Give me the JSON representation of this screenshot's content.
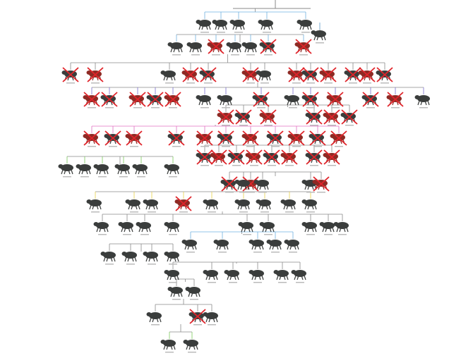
{
  "diagram": {
    "type": "phylogenetic-tree",
    "colors": {
      "branch_default": "#8a8a8a",
      "branch_blue": "#6fb0e0",
      "branch_green": "#7cc95a",
      "branch_yellow": "#e8d24a",
      "branch_purple": "#7a6fd0",
      "branch_pink": "#e070c0",
      "extinct_mark": "#e0242a",
      "creature_dark": "#3a3d3c",
      "creature_red": "#8e2a24"
    },
    "node_status": [
      "extant",
      "extant",
      "extant",
      "extant",
      "extant",
      "extant",
      "extant",
      "extant",
      "extinct",
      "extant",
      "extant",
      "extinct",
      "extinct",
      "extinct",
      "extinct",
      "extant",
      "extinct",
      "extinct",
      "extinct",
      "extant",
      "extinct",
      "extinct",
      "extinct",
      "extinct",
      "extinct",
      "extinct",
      "extinct",
      "extinct",
      "extinct",
      "extinct",
      "extinct",
      "extant",
      "extant",
      "extinct",
      "extant",
      "extinct",
      "extinct",
      "extinct",
      "extinct",
      "extant",
      "extinct",
      "extinct",
      "extinct",
      "extinct",
      "extinct",
      "extinct",
      "extinct",
      "extinct",
      "extinct",
      "extinct",
      "extinct",
      "extinct",
      "extinct",
      "extinct",
      "extinct",
      "extinct",
      "extinct",
      "extinct",
      "extinct",
      "extinct",
      "extinct",
      "extinct",
      "extinct",
      "extinct",
      "extinct",
      "extant",
      "extant",
      "extant",
      "extant",
      "extant",
      "extant",
      "extinct",
      "extinct",
      "extant",
      "extant",
      "extant",
      "extinct",
      "extant",
      "extant",
      "extant",
      "extinct",
      "extant",
      "extant",
      "extant",
      "extant",
      "extant",
      "extant",
      "extant",
      "extant",
      "extant",
      "extant",
      "extant",
      "extant",
      "extant",
      "extant",
      "extant",
      "extant",
      "extant",
      "extant",
      "extant",
      "extant",
      "extant",
      "extant",
      "extant",
      "extant",
      "extant",
      "extant",
      "extant",
      "extant",
      "extant",
      "extant",
      "extant",
      "extant",
      "extinct",
      "extant",
      "extant",
      "extant"
    ]
  }
}
